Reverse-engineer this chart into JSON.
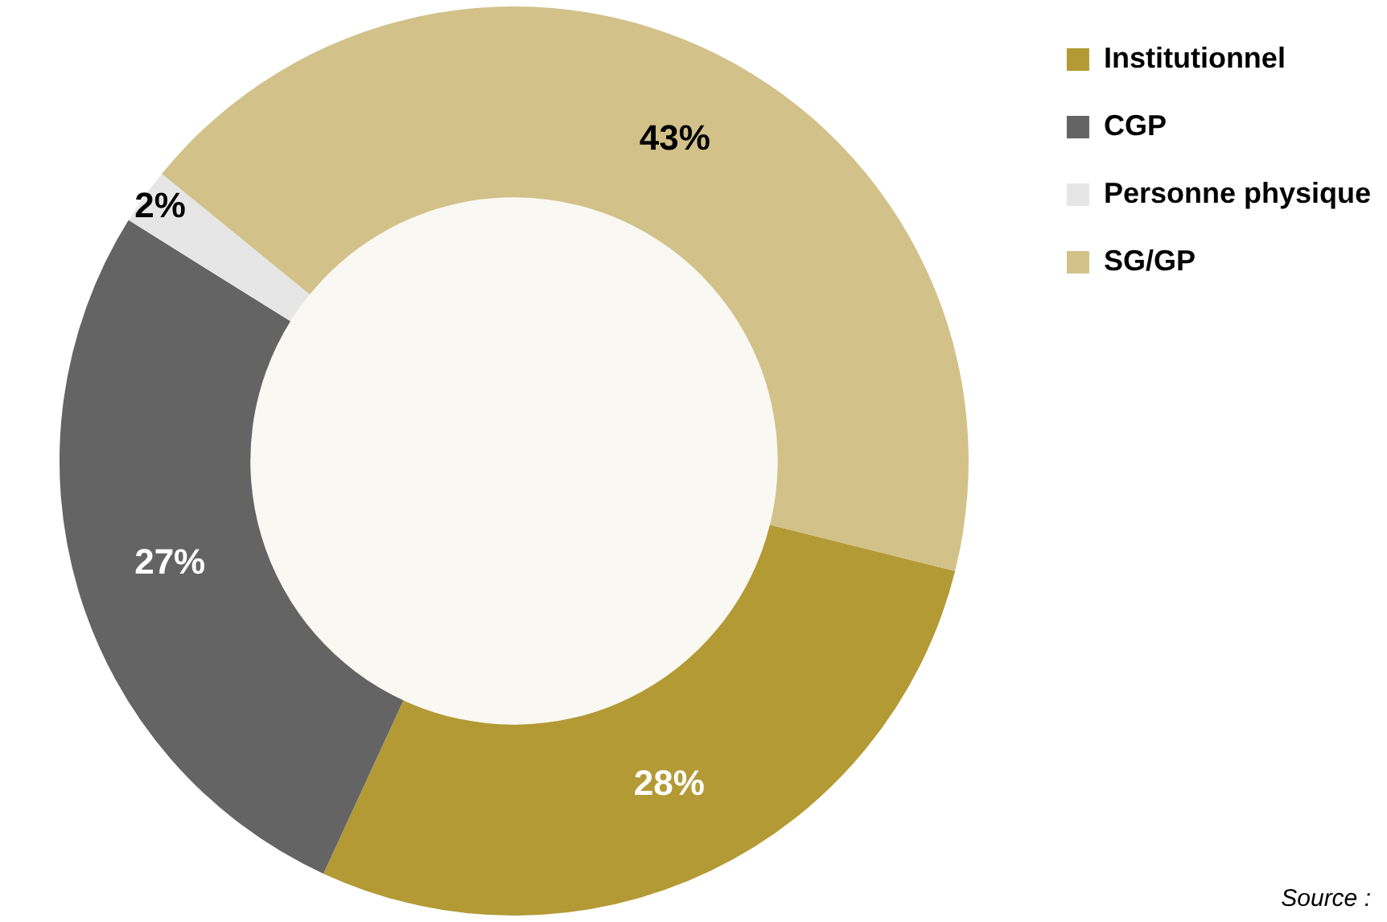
{
  "chart_data": {
    "type": "donut",
    "categories": [
      "Institutionnel",
      "CGP",
      "Personne physique",
      "SG/GP"
    ],
    "values": [
      28,
      27,
      2,
      43
    ],
    "colors": [
      "#b39a35",
      "#646464",
      "#e6e6e6",
      "#d2c28a"
    ],
    "value_labels": [
      "28%",
      "27%",
      "2%",
      "43%"
    ],
    "legend": "right",
    "annotations": [
      "Source :"
    ]
  }
}
